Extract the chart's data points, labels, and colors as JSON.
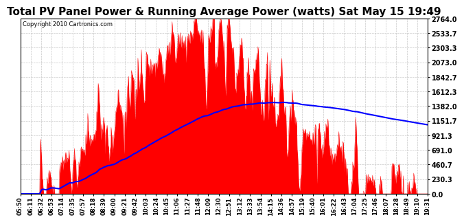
{
  "title": "Total PV Panel Power & Running Average Power (watts) Sat May 15 19:49",
  "copyright": "Copyright 2010 Cartronics.com",
  "yticks": [
    0.0,
    230.3,
    460.7,
    691.0,
    921.3,
    1151.7,
    1382.0,
    1612.3,
    1842.7,
    2073.0,
    2303.3,
    2533.7,
    2764.0
  ],
  "ymax": 2764.0,
  "ymin": 0.0,
  "bg_color": "#ffffff",
  "fill_color": "#ff0000",
  "avg_color": "#0000ff",
  "grid_color": "#c8c8c8",
  "title_fontsize": 11,
  "copyright_fontsize": 6,
  "x_tick_fontsize": 6,
  "y_tick_fontsize": 7
}
